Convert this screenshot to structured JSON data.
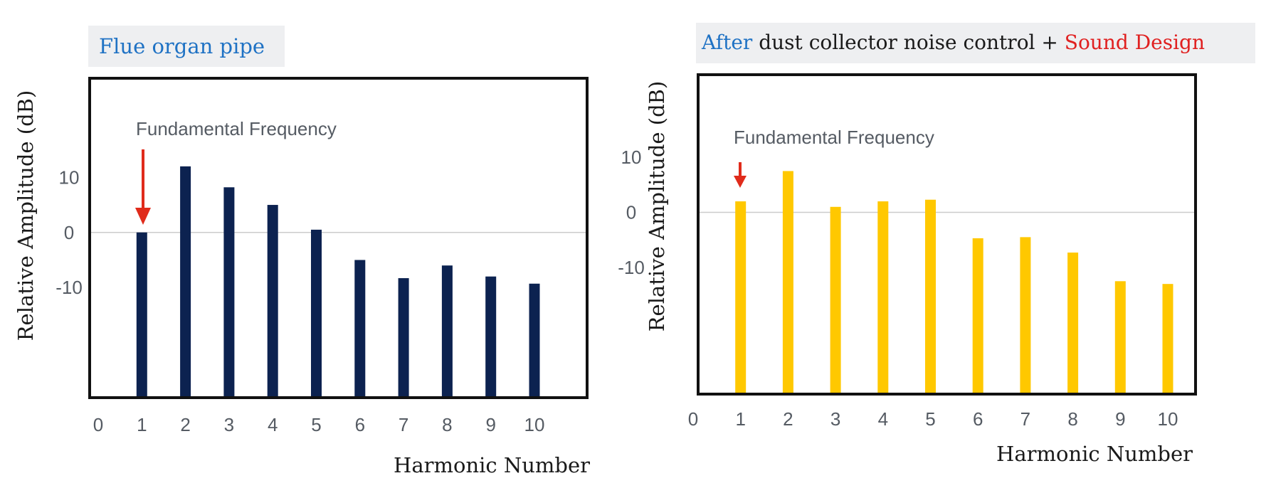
{
  "colors": {
    "title_blue": "#1f72c4",
    "title_red": "#e02020",
    "title_dark": "#1a1a1a",
    "title_bg": "#eeeff1",
    "bar_left": "#0c2250",
    "bar_right": "#ffc800",
    "arrow": "#e02b1b",
    "tick_text": "#555b63",
    "baseline": "#cccccc"
  },
  "chart_data": [
    {
      "type": "bar",
      "title": "Flue organ pipe",
      "xlabel": "Harmonic Number",
      "ylabel": "Relative Amplitude (dB)",
      "annotation": "Fundamental Frequency",
      "annotation_target_harmonic": 1,
      "x_ticks": [
        "0",
        "1",
        "2",
        "3",
        "4",
        "5",
        "6",
        "7",
        "8",
        "9",
        "10"
      ],
      "y_ticks": [
        "10",
        "0",
        "-10"
      ],
      "x_range": [
        0,
        10
      ],
      "ylim": [
        -30,
        28
      ],
      "categories": [
        1,
        2,
        3,
        4,
        5,
        6,
        7,
        8,
        9,
        10
      ],
      "values": [
        0,
        12,
        8.2,
        5,
        0.5,
        -5,
        -8.3,
        -6,
        -8,
        -9.3
      ],
      "grid": false,
      "bar_color": "#0c2250"
    },
    {
      "type": "bar",
      "title_parts": [
        {
          "text": "After",
          "color": "#1f72c4"
        },
        {
          "text": " dust collector noise control + ",
          "color": "#1a1a1a"
        },
        {
          "text": "Sound Design",
          "color": "#e02020"
        }
      ],
      "xlabel": "Harmonic Number",
      "ylabel": "Relative Amplitude (dB)",
      "annotation": "Fundamental Frequency",
      "annotation_target_harmonic": 1,
      "x_ticks": [
        "0",
        "1",
        "2",
        "3",
        "4",
        "5",
        "6",
        "7",
        "8",
        "9",
        "10"
      ],
      "y_ticks": [
        "10",
        "0",
        "-10"
      ],
      "x_range": [
        0,
        10
      ],
      "ylim": [
        -33,
        25
      ],
      "categories": [
        1,
        2,
        3,
        4,
        5,
        6,
        7,
        8,
        9,
        10
      ],
      "values": [
        2,
        7.5,
        1,
        2,
        2.3,
        -4.7,
        -4.5,
        -7.3,
        -12.5,
        -13
      ],
      "grid": false,
      "bar_color": "#ffc800"
    }
  ]
}
